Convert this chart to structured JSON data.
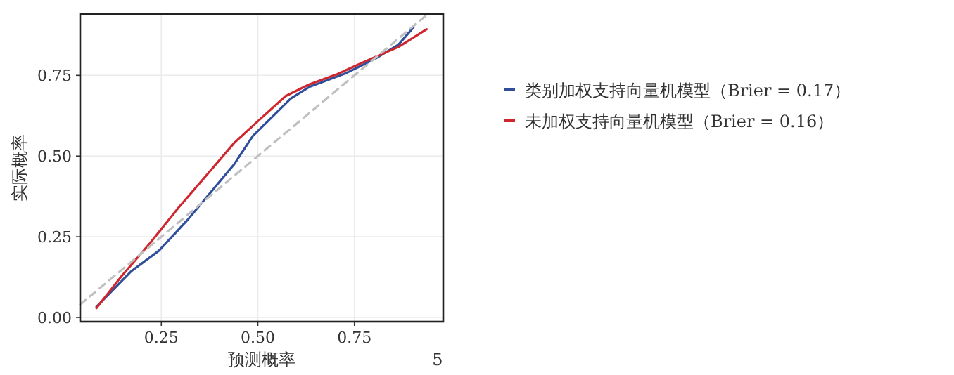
{
  "chart_data": {
    "type": "line",
    "xlabel": "预测概率",
    "ylabel": "实际概率",
    "xlim": [
      0.04,
      0.98
    ],
    "ylim": [
      -0.013,
      0.94
    ],
    "xticks": [
      0.25,
      {
        "value": 0.5,
        "label": "0.50"
      },
      0.75
    ],
    "yticks": [
      {
        "value": 0,
        "label": "0.00"
      },
      0.25,
      {
        "value": 0.5,
        "label": "0.50"
      },
      0.75
    ],
    "grid": true,
    "legend": "right",
    "marker": "none",
    "annotations": [
      "5"
    ],
    "series": [
      {
        "name": "类别加权支持向量机模型（Brier = 0.17）",
        "color": "#2f4f9a",
        "x": [
          0.082,
          0.171,
          0.244,
          0.317,
          0.378,
          0.439,
          0.487,
          0.536,
          0.585,
          0.633,
          0.682,
          0.73,
          0.803,
          0.864,
          0.903
        ],
        "values": [
          0.033,
          0.142,
          0.207,
          0.301,
          0.388,
          0.475,
          0.562,
          0.62,
          0.678,
          0.714,
          0.736,
          0.758,
          0.801,
          0.845,
          0.899
        ]
      },
      {
        "name": "未加权支持向量机模型（Brier = 0.16）",
        "color": "#d0262e",
        "x": [
          0.082,
          0.147,
          0.22,
          0.293,
          0.366,
          0.439,
          0.511,
          0.572,
          0.633,
          0.706,
          0.779,
          0.864,
          0.937
        ],
        "values": [
          0.029,
          0.128,
          0.229,
          0.338,
          0.439,
          0.541,
          0.62,
          0.686,
          0.722,
          0.754,
          0.794,
          0.838,
          0.893
        ]
      },
      {
        "color": "#c0c0c0",
        "line_style": "dashed",
        "x": [
          0.04,
          0.94
        ],
        "values": [
          0.04,
          0.94
        ]
      }
    ]
  }
}
